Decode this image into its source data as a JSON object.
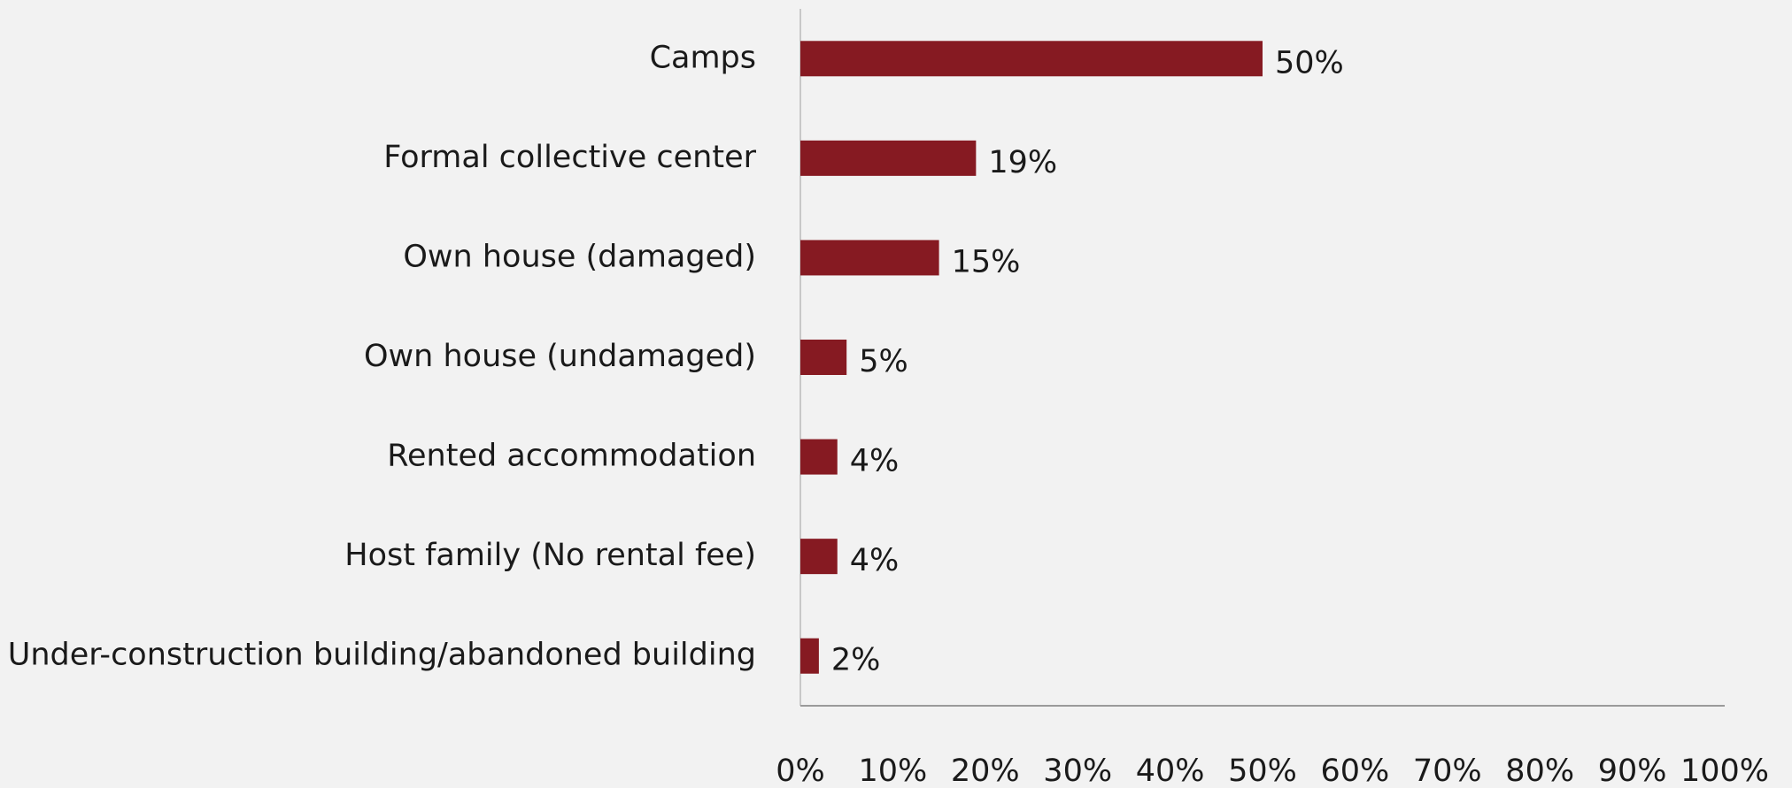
{
  "chart_data": {
    "type": "bar",
    "orientation": "horizontal",
    "categories": [
      "Camps",
      "Formal collective center",
      "Own house (damaged)",
      "Own house (undamaged)",
      "Rented accommodation",
      "Host family (No rental fee)",
      "Under-construction building/abandoned building"
    ],
    "values": [
      50,
      19,
      15,
      5,
      4,
      4,
      2
    ],
    "value_labels": [
      "50%",
      "19%",
      "15%",
      "5%",
      "4%",
      "4%",
      "2%"
    ],
    "color": "#861a22",
    "xlim": [
      0,
      100
    ],
    "xticks": [
      {
        "value": 0,
        "label": "0%"
      },
      {
        "value": 10,
        "label": "10%"
      },
      {
        "value": 20,
        "label": "20%"
      },
      {
        "value": 30,
        "label": "30%"
      },
      {
        "value": 40,
        "label": "40%"
      },
      {
        "value": 50,
        "label": "50%"
      },
      {
        "value": 60,
        "label": "60%"
      },
      {
        "value": 70,
        "label": "70%"
      },
      {
        "value": 80,
        "label": "80%"
      },
      {
        "value": 90,
        "label": "90%"
      },
      {
        "value": 100,
        "label": "100%"
      }
    ],
    "grid": false
  }
}
